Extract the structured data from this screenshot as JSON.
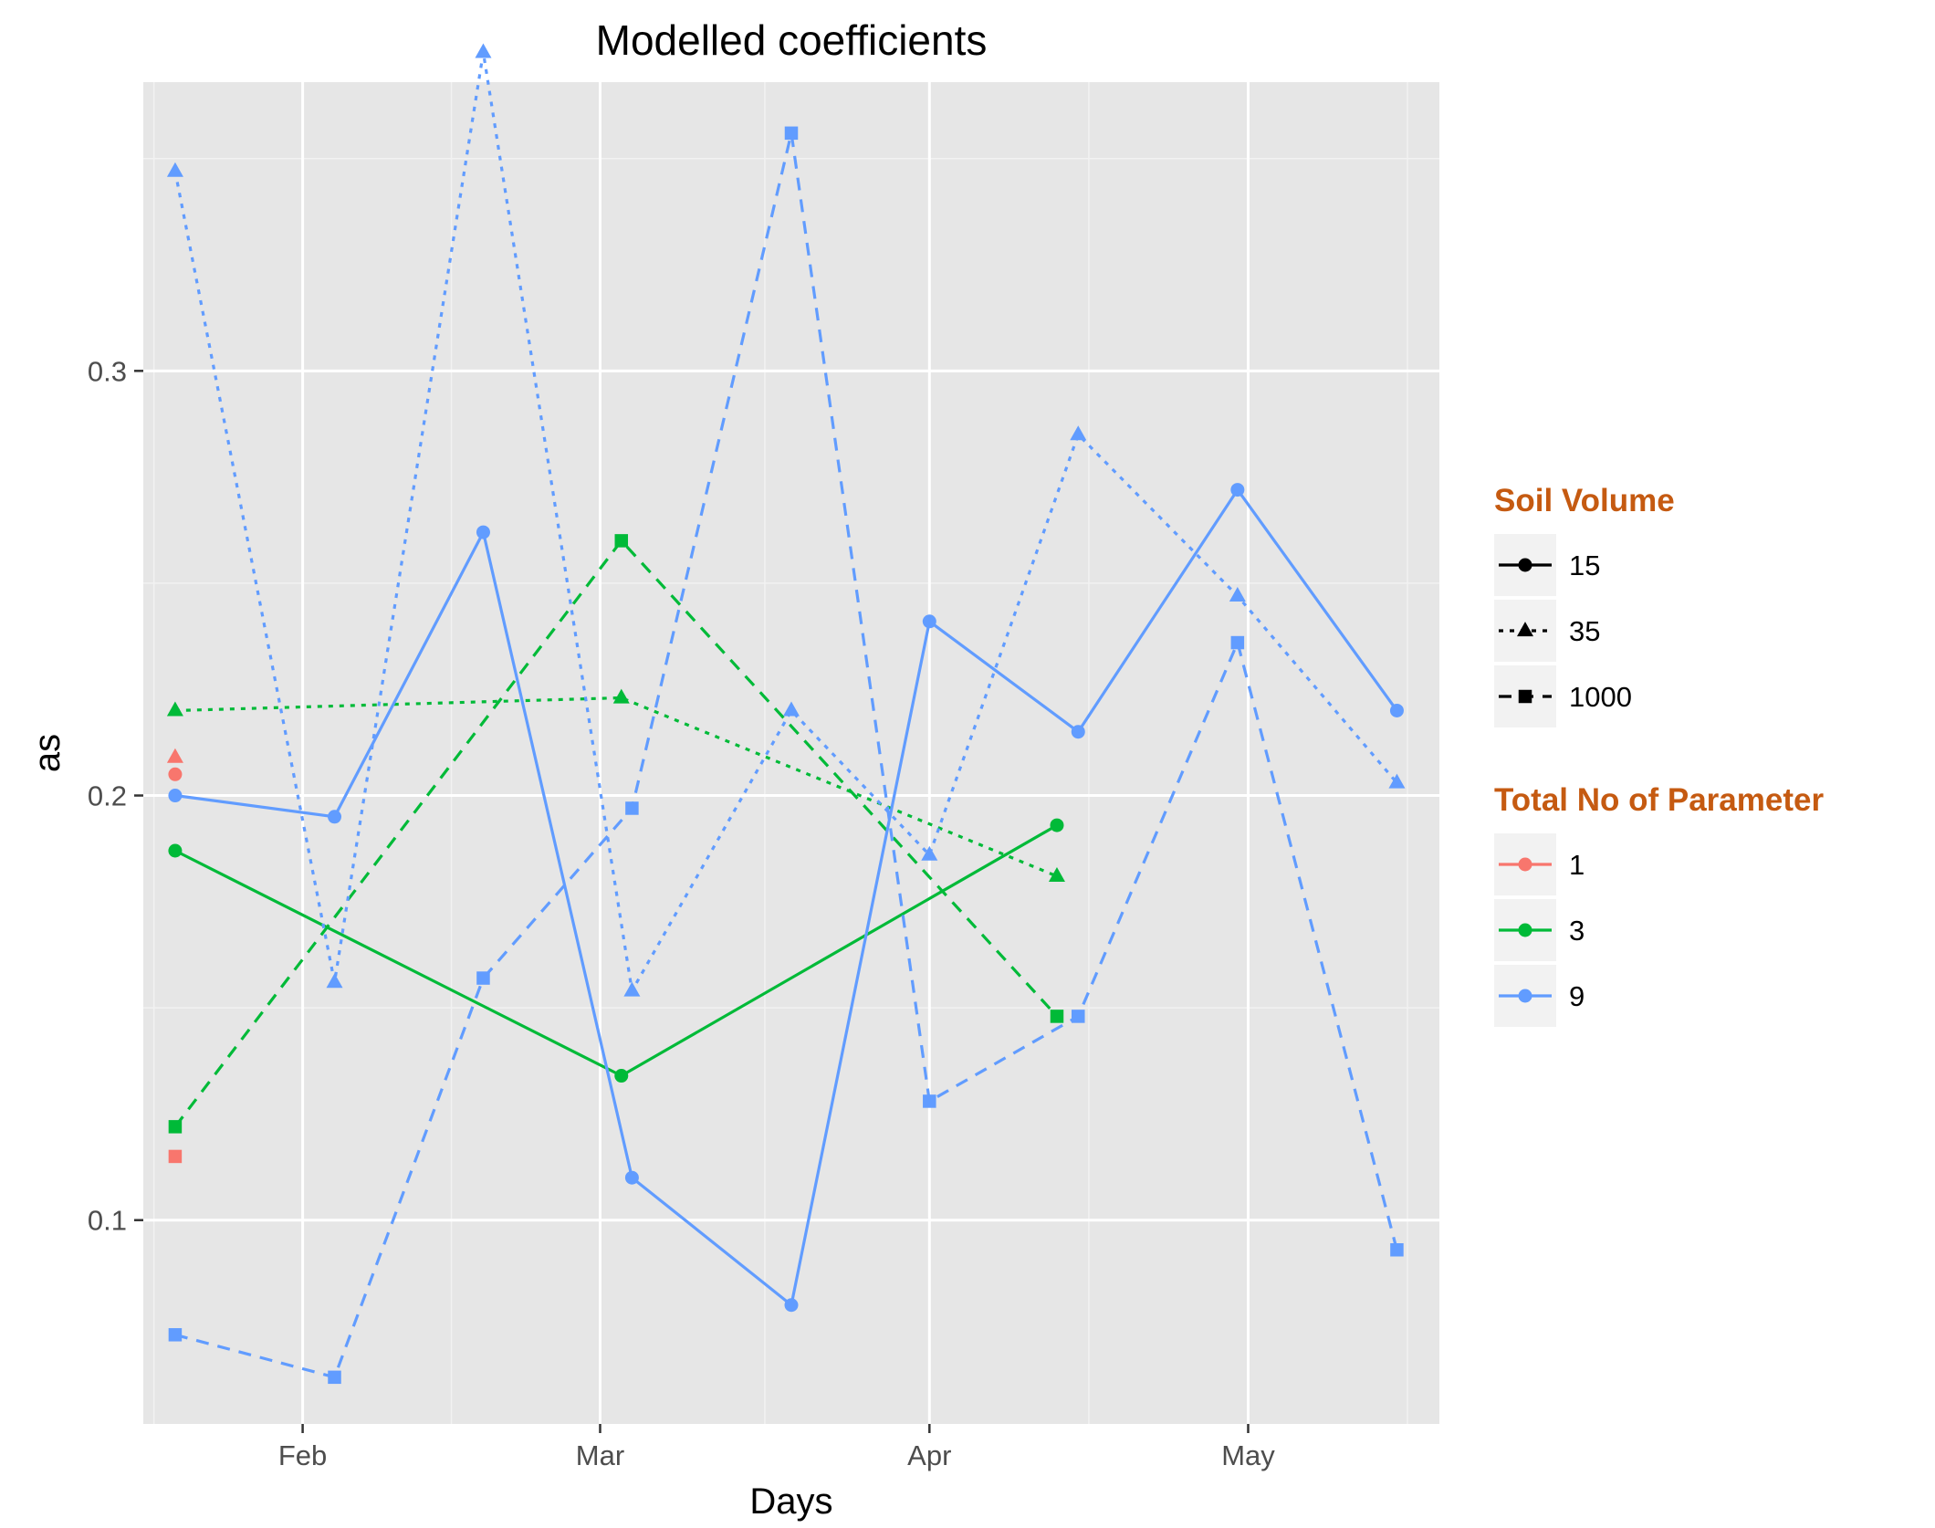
{
  "chart_data": {
    "type": "line",
    "title": "Modelled coefficients",
    "xlabel": "Days",
    "ylabel": "as",
    "x_axis": {
      "kind": "date",
      "range": [
        "2017-01-17",
        "2017-05-19"
      ],
      "ticks": [
        {
          "date": "2017-02-01",
          "label": "Feb"
        },
        {
          "date": "2017-03-01",
          "label": "Mar"
        },
        {
          "date": "2017-04-01",
          "label": "Apr"
        },
        {
          "date": "2017-05-01",
          "label": "May"
        }
      ]
    },
    "y_axis": {
      "range": [
        0.052,
        0.368
      ],
      "ticks": [
        0.1,
        0.2,
        0.3
      ],
      "tick_labels": [
        "0.1",
        "0.2",
        "0.3"
      ]
    },
    "grid": true,
    "legend": {
      "placement": "right",
      "color_title": "Soil Volume",
      "color_entries": [
        {
          "label": "15",
          "shape": "circle",
          "linetype": "solid"
        },
        {
          "label": "35",
          "shape": "triangle",
          "linetype": "dotted"
        },
        {
          "label": "1000",
          "shape": "square",
          "linetype": "dashed"
        }
      ],
      "param_title": "Total No of Parameter",
      "param_entries": [
        {
          "label": "1",
          "color": "#F8766D"
        },
        {
          "label": "3",
          "color": "#00BA38"
        },
        {
          "label": "9",
          "color": "#619CFF"
        }
      ]
    },
    "series": [
      {
        "params": "1",
        "soil": "15",
        "color": "#F8766D",
        "shape": "circle",
        "linetype": "solid",
        "points": [
          {
            "x": "2017-01-20",
            "y": 0.205
          }
        ]
      },
      {
        "params": "1",
        "soil": "35",
        "color": "#F8766D",
        "shape": "triangle",
        "linetype": "dotted",
        "points": [
          {
            "x": "2017-01-20",
            "y": 0.209
          }
        ]
      },
      {
        "params": "1",
        "soil": "1000",
        "color": "#F8766D",
        "shape": "square",
        "linetype": "dashed",
        "points": [
          {
            "x": "2017-01-20",
            "y": 0.115
          }
        ]
      },
      {
        "params": "3",
        "soil": "15",
        "color": "#00BA38",
        "shape": "circle",
        "linetype": "solid",
        "points": [
          {
            "x": "2017-01-20",
            "y": 0.187
          },
          {
            "x": "2017-03-03",
            "y": 0.134
          },
          {
            "x": "2017-04-13",
            "y": 0.193
          }
        ]
      },
      {
        "params": "3",
        "soil": "35",
        "color": "#00BA38",
        "shape": "triangle",
        "linetype": "dotted",
        "points": [
          {
            "x": "2017-01-20",
            "y": 0.22
          },
          {
            "x": "2017-03-03",
            "y": 0.223
          },
          {
            "x": "2017-04-13",
            "y": 0.181
          }
        ]
      },
      {
        "params": "3",
        "soil": "1000",
        "color": "#00BA38",
        "shape": "square",
        "linetype": "dashed",
        "points": [
          {
            "x": "2017-01-20",
            "y": 0.122
          },
          {
            "x": "2017-03-03",
            "y": 0.26
          },
          {
            "x": "2017-04-13",
            "y": 0.148
          }
        ]
      },
      {
        "params": "9",
        "soil": "15",
        "color": "#619CFF",
        "shape": "circle",
        "linetype": "solid",
        "points": [
          {
            "x": "2017-01-20",
            "y": 0.2
          },
          {
            "x": "2017-02-04",
            "y": 0.195
          },
          {
            "x": "2017-02-18",
            "y": 0.262
          },
          {
            "x": "2017-03-04",
            "y": 0.11
          },
          {
            "x": "2017-03-19",
            "y": 0.08
          },
          {
            "x": "2017-04-01",
            "y": 0.241
          },
          {
            "x": "2017-04-15",
            "y": 0.215
          },
          {
            "x": "2017-04-30",
            "y": 0.272
          },
          {
            "x": "2017-05-15",
            "y": 0.22
          }
        ]
      },
      {
        "params": "9",
        "soil": "35",
        "color": "#619CFF",
        "shape": "triangle",
        "linetype": "dotted",
        "points": [
          {
            "x": "2017-01-20",
            "y": 0.347
          },
          {
            "x": "2017-02-04",
            "y": 0.156
          },
          {
            "x": "2017-02-18",
            "y": 0.375
          },
          {
            "x": "2017-03-04",
            "y": 0.154
          },
          {
            "x": "2017-03-19",
            "y": 0.22
          },
          {
            "x": "2017-04-01",
            "y": 0.186
          },
          {
            "x": "2017-04-15",
            "y": 0.285
          },
          {
            "x": "2017-04-30",
            "y": 0.247
          },
          {
            "x": "2017-05-15",
            "y": 0.203
          }
        ]
      },
      {
        "params": "9",
        "soil": "1000",
        "color": "#619CFF",
        "shape": "square",
        "linetype": "dashed",
        "points": [
          {
            "x": "2017-01-20",
            "y": 0.073
          },
          {
            "x": "2017-02-04",
            "y": 0.063
          },
          {
            "x": "2017-02-18",
            "y": 0.157
          },
          {
            "x": "2017-03-04",
            "y": 0.197
          },
          {
            "x": "2017-03-19",
            "y": 0.356
          },
          {
            "x": "2017-04-01",
            "y": 0.128
          },
          {
            "x": "2017-04-15",
            "y": 0.148
          },
          {
            "x": "2017-04-30",
            "y": 0.236
          },
          {
            "x": "2017-05-15",
            "y": 0.093
          }
        ]
      }
    ],
    "colors": {
      "panel_background": "#E6E6E6",
      "grid_major": "#FFFFFF",
      "grid_minor": "#F2F2F2",
      "legend_title": "#C55A11",
      "legend_key_background": "#F2F2F2"
    }
  }
}
